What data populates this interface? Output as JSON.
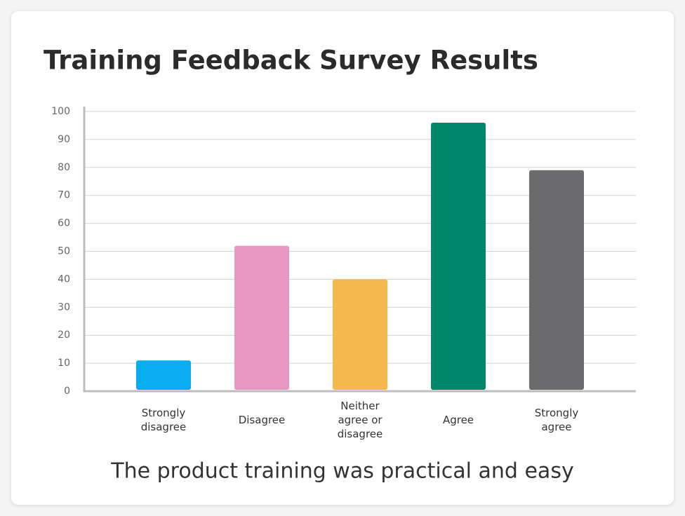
{
  "chart_data": {
    "type": "bar",
    "title": "Training Feedback Survey Results",
    "xlabel": "The product training was practical and easy",
    "categories": [
      "Strongly disagree",
      "Disagree",
      "Neither agree or disagree",
      "Agree",
      "Strongly agree"
    ],
    "values": [
      11,
      52,
      40,
      96,
      79
    ],
    "colors": [
      "#0aacf0",
      "#e897c0",
      "#f6b84e",
      "#00876c",
      "#6b6b6d"
    ],
    "ylim": [
      0,
      100
    ],
    "yticks": [
      0,
      10,
      20,
      30,
      40,
      50,
      60,
      70,
      80,
      90,
      100
    ],
    "grid": true
  }
}
